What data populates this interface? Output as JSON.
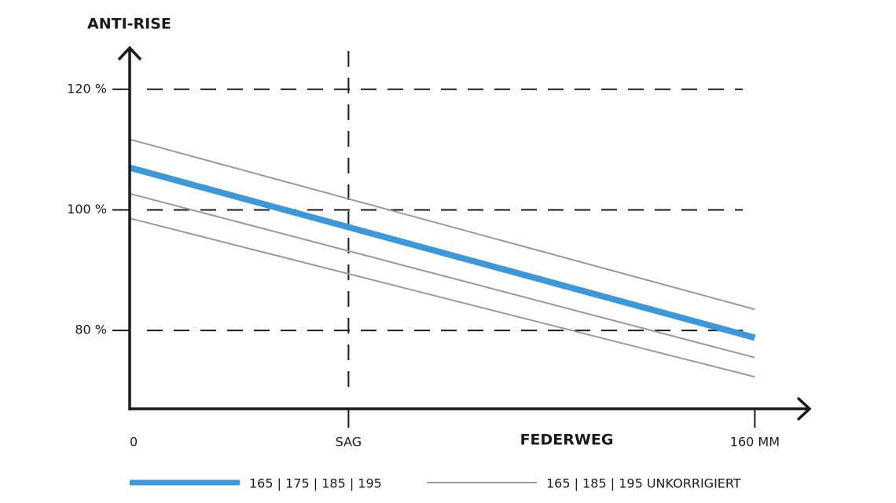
{
  "chart_data": {
    "type": "line",
    "ylabel": "ANTI-RISE",
    "xlabel": "FEDERWEG",
    "x": [
      0,
      160
    ],
    "xlim": [
      0,
      174
    ],
    "xticks": [
      0,
      {
        "value": 56,
        "label": "SAG"
      },
      {
        "value": 160,
        "label": "160 MM"
      }
    ],
    "ylim": [
      67,
      127
    ],
    "yticks": [
      {
        "value": 80,
        "label": "80 %"
      },
      {
        "value": 100,
        "label": "100 %"
      },
      {
        "value": 120,
        "label": "120 %"
      }
    ],
    "grid": true,
    "series": [
      {
        "name": "165 | 175 | 185 | 195",
        "color": "#3d98d9",
        "values": [
          107,
          78.8
        ]
      },
      {
        "name": "165 | 185 | 195 UNKORRIGIERT",
        "color": "#9a9a9a",
        "lines": [
          [
            111.7,
            83.5
          ],
          [
            102.7,
            75.5
          ],
          [
            98.6,
            72.3
          ]
        ]
      }
    ]
  }
}
